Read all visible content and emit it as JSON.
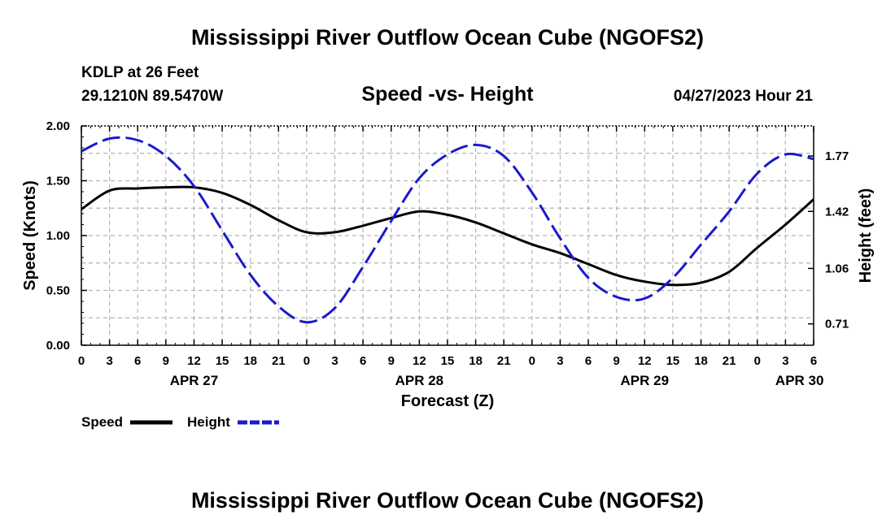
{
  "header": {
    "title": "Mississippi River Outflow Ocean Cube (NGOFS2)",
    "station": "KDLP at 26 Feet",
    "coords": "29.1210N  89.5470W",
    "datetime": "04/27/2023 Hour 21",
    "footer_title": "Mississippi River Outflow Ocean Cube (NGOFS2)"
  },
  "colors": {
    "speed": "#000000",
    "height": "#1a1acc",
    "grid": "#b4b4b4"
  },
  "chart_data": {
    "type": "line",
    "title": "Speed -vs- Height",
    "xlabel": "Forecast (Z)",
    "ylabel": "Speed (Knots)",
    "ylabel_right": "Height (feet)",
    "x_range_hours": [
      0,
      78
    ],
    "x_tick_step_hours": 3,
    "x_tick_labels": [
      "0",
      "3",
      "6",
      "9",
      "12",
      "15",
      "18",
      "21",
      "0",
      "3",
      "6",
      "9",
      "12",
      "15",
      "18",
      "21",
      "0",
      "3",
      "6",
      "9",
      "12",
      "15",
      "18",
      "21",
      "0",
      "3",
      "6"
    ],
    "date_labels": [
      {
        "label": "APR 27",
        "hour": 12
      },
      {
        "label": "APR 28",
        "hour": 36
      },
      {
        "label": "APR 29",
        "hour": 60
      },
      {
        "label": "APR 30",
        "hour": 76.5
      }
    ],
    "y_left": {
      "range": [
        0,
        2.0
      ],
      "ticks": [
        "0.00",
        "0.50",
        "1.00",
        "1.50",
        "2.00"
      ],
      "tick_values": [
        0,
        0.5,
        1.0,
        1.5,
        2.0
      ]
    },
    "y_right": {
      "range": [
        0.575,
        1.96
      ],
      "ticks": [
        "0.71",
        "1.06",
        "1.42",
        "1.77"
      ],
      "tick_values": [
        0.71,
        1.06,
        1.42,
        1.77
      ]
    },
    "grid": true,
    "legend": {
      "position": "bottom-left",
      "entries": [
        {
          "name": "Speed",
          "style": "solid"
        },
        {
          "name": "Height",
          "style": "dashed"
        }
      ]
    },
    "series": [
      {
        "name": "Speed",
        "axis": "left",
        "x": [
          0,
          3,
          6,
          9,
          12,
          15,
          18,
          21,
          24,
          27,
          30,
          33,
          36,
          39,
          42,
          45,
          48,
          51,
          54,
          57,
          60,
          63,
          66,
          69,
          72,
          75,
          78
        ],
        "values": [
          1.24,
          1.41,
          1.43,
          1.44,
          1.44,
          1.39,
          1.28,
          1.14,
          1.03,
          1.03,
          1.09,
          1.16,
          1.22,
          1.19,
          1.12,
          1.02,
          0.92,
          0.84,
          0.74,
          0.64,
          0.58,
          0.55,
          0.57,
          0.67,
          0.89,
          1.1,
          1.33
        ]
      },
      {
        "name": "Height",
        "axis": "right",
        "x": [
          0,
          3,
          6,
          9,
          12,
          15,
          18,
          21,
          24,
          27,
          30,
          33,
          36,
          39,
          42,
          45,
          48,
          51,
          54,
          57,
          60,
          63,
          66,
          69,
          72,
          75,
          78
        ],
        "values": [
          1.8,
          1.88,
          1.87,
          1.77,
          1.58,
          1.3,
          1.02,
          0.82,
          0.72,
          0.81,
          1.07,
          1.36,
          1.63,
          1.78,
          1.84,
          1.77,
          1.54,
          1.25,
          1.0,
          0.88,
          0.87,
          1.0,
          1.21,
          1.42,
          1.66,
          1.78,
          1.75
        ]
      }
    ]
  }
}
